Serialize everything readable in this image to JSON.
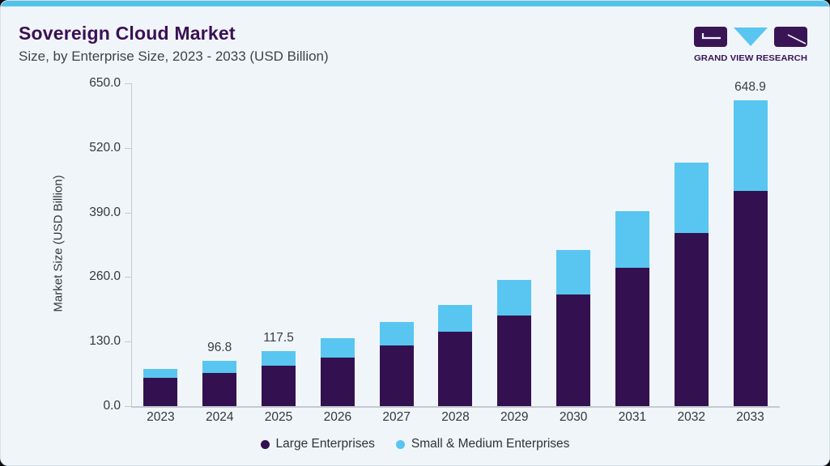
{
  "header": {
    "title": "Sovereign Cloud Market",
    "subtitle": "Size, by Enterprise Size, 2023 - 2033 (USD Billion)"
  },
  "logo": {
    "text": "GRAND VIEW RESEARCH",
    "purple": "#3a1556",
    "blue": "#58c6f0"
  },
  "chart_data": {
    "type": "bar",
    "stacked": true,
    "title": "Sovereign Cloud Market Size, by Enterprise Size, 2023 - 2033 (USD Billion)",
    "categories": [
      "2023",
      "2024",
      "2025",
      "2026",
      "2027",
      "2028",
      "2029",
      "2030",
      "2031",
      "2032",
      "2033"
    ],
    "series": [
      {
        "name": "Large Enterprises",
        "color": "#331150",
        "values": [
          60.4,
          70.7,
          86.1,
          103.5,
          128.0,
          157.5,
          192.5,
          236.5,
          293.0,
          366.5,
          456.9
        ]
      },
      {
        "name": "Small & Medium Enterprises",
        "color": "#58c6f0",
        "values": [
          18.9,
          26.1,
          31.4,
          40.0,
          50.0,
          57.5,
          74.5,
          94.5,
          121.0,
          150.5,
          192.0
        ]
      }
    ],
    "totals": [
      79.3,
      96.8,
      117.5,
      143.5,
      178.0,
      215.0,
      267.0,
      331.0,
      414.0,
      517.0,
      648.9
    ],
    "bar_total_labels": [
      "",
      "96.8",
      "117.5",
      "",
      "",
      "",
      "",
      "",
      "",
      "",
      "648.9"
    ],
    "ylabel": "Market Size (USD Billion)",
    "ylim": [
      0,
      650
    ],
    "yticks": [
      "650.0",
      "520.0",
      "390.0",
      "260.0",
      "130.0",
      "0.0"
    ],
    "grid": "off",
    "legend_position": "bottom"
  }
}
